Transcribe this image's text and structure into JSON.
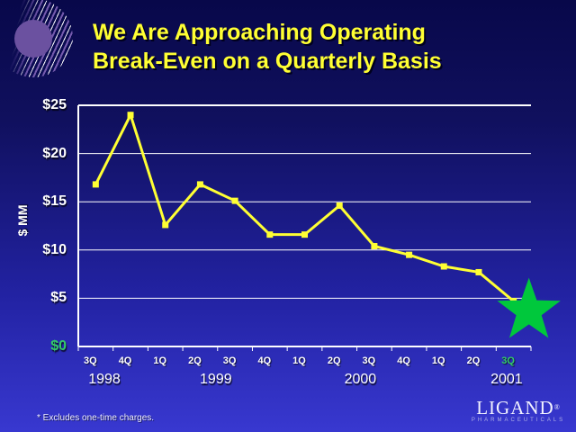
{
  "slide": {
    "title": {
      "line1": "We Are Approaching Operating",
      "line2": "Break-Even on a Quarterly Basis"
    },
    "footnote": "* Excludes one-time charges.",
    "logo": {
      "name": "LIGAND",
      "registered": "®",
      "subtitle": "PHARMACEUTICALS"
    }
  },
  "colors": {
    "background_top": "#08084a",
    "background_bottom": "#3838d0",
    "title_yellow": "#ffff33",
    "line_yellow": "#ffff33",
    "star_green": "#00c83c",
    "highlight_green": "#33cc66",
    "axis_white": "#ffffff",
    "deco_purple": "#6b51a0"
  },
  "chart_data": {
    "type": "line",
    "title": "",
    "xlabel": "",
    "ylabel": "$ MM",
    "grid": true,
    "legend_position": "none",
    "marker": "square",
    "categories": [
      "3Q",
      "4Q",
      "1Q",
      "2Q",
      "3Q",
      "4Q",
      "1Q",
      "2Q",
      "3Q",
      "4Q",
      "1Q",
      "2Q",
      "3Q"
    ],
    "values": [
      16.8,
      24.0,
      12.6,
      16.8,
      15.1,
      11.6,
      11.6,
      14.6,
      10.4,
      9.5,
      8.3,
      7.7,
      4.7
    ],
    "year_groups": [
      {
        "label": "1998",
        "col": 0.25
      },
      {
        "label": "1999",
        "col": 3.45
      },
      {
        "label": "2000",
        "col": 7.6
      },
      {
        "label": "2001",
        "col": 11.8
      }
    ],
    "yticks": [
      {
        "label": "$25",
        "value": 25,
        "highlight": false
      },
      {
        "label": "$20",
        "value": 20,
        "highlight": false
      },
      {
        "label": "$15",
        "value": 15,
        "highlight": false
      },
      {
        "label": "$10",
        "value": 10,
        "highlight": false
      },
      {
        "label": "$5",
        "value": 5,
        "highlight": false
      },
      {
        "label": "$0",
        "value": 0,
        "highlight": true
      }
    ],
    "ylim": [
      0,
      25
    ],
    "highlight_last_category": true,
    "annotations": [
      {
        "type": "star",
        "at_category": 12,
        "color": "#00c83c",
        "meaning": "projected break-even quarter"
      }
    ]
  }
}
